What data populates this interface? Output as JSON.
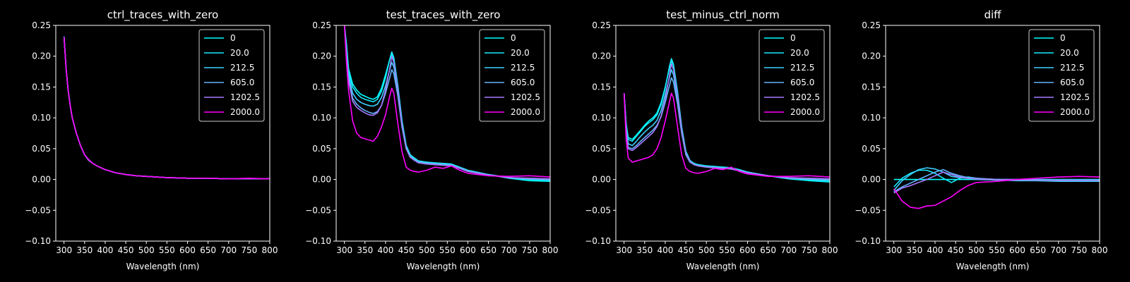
{
  "theme": {
    "background": "#000000",
    "foreground": "#ffffff"
  },
  "legend": {
    "placement": "upper right"
  },
  "series_styles": [
    {
      "name": "0",
      "color": "#00ffff"
    },
    {
      "name": "20.0",
      "color": "#14eaff"
    },
    {
      "name": "212.5",
      "color": "#3fd0ff"
    },
    {
      "name": "605.0",
      "color": "#62b4ff"
    },
    {
      "name": "1202.5",
      "color": "#a67aff"
    },
    {
      "name": "2000.0",
      "color": "#ff00ff"
    }
  ],
  "chart_data": [
    {
      "type": "line",
      "title": "ctrl_traces_with_zero",
      "xlabel": "Wavelength (nm)",
      "ylabel": "",
      "xlim": [
        280,
        800
      ],
      "ylim": [
        -0.1,
        0.25
      ],
      "xticks": [
        300,
        350,
        400,
        450,
        500,
        550,
        600,
        650,
        700,
        750,
        800
      ],
      "yticks": [
        -0.1,
        -0.05,
        0.0,
        0.05,
        0.1,
        0.15,
        0.2,
        0.25
      ],
      "xtick_labels": [
        "300",
        "350",
        "400",
        "450",
        "500",
        "550",
        "600",
        "650",
        "700",
        "750",
        "800"
      ],
      "ytick_labels": [
        "−0.10",
        "−0.05",
        "0.00",
        "0.05",
        "0.10",
        "0.15",
        "0.20",
        "0.25"
      ],
      "x": [
        300,
        305,
        310,
        315,
        320,
        330,
        340,
        350,
        360,
        370,
        380,
        400,
        425,
        450,
        475,
        500,
        550,
        600,
        650,
        700,
        750,
        800
      ],
      "series": [
        {
          "name": "0",
          "values": [
            0.232,
            0.18,
            0.145,
            0.12,
            0.1,
            0.075,
            0.055,
            0.04,
            0.032,
            0.026,
            0.022,
            0.016,
            0.011,
            0.008,
            0.006,
            0.005,
            0.003,
            0.002,
            0.002,
            0.001,
            0.001,
            0.001
          ]
        },
        {
          "name": "20.0",
          "values": [
            0.231,
            0.18,
            0.144,
            0.12,
            0.1,
            0.075,
            0.055,
            0.04,
            0.031,
            0.026,
            0.022,
            0.016,
            0.011,
            0.008,
            0.006,
            0.005,
            0.003,
            0.002,
            0.002,
            0.001,
            0.001,
            0.001
          ]
        },
        {
          "name": "212.5",
          "values": [
            0.231,
            0.18,
            0.145,
            0.12,
            0.1,
            0.075,
            0.055,
            0.04,
            0.032,
            0.026,
            0.022,
            0.016,
            0.011,
            0.008,
            0.006,
            0.005,
            0.003,
            0.002,
            0.002,
            0.001,
            0.001,
            0.001
          ]
        },
        {
          "name": "605.0",
          "values": [
            0.231,
            0.18,
            0.144,
            0.12,
            0.1,
            0.075,
            0.055,
            0.04,
            0.031,
            0.026,
            0.022,
            0.016,
            0.011,
            0.008,
            0.006,
            0.005,
            0.003,
            0.002,
            0.002,
            0.001,
            0.001,
            0.001
          ]
        },
        {
          "name": "1202.5",
          "values": [
            0.231,
            0.18,
            0.145,
            0.12,
            0.1,
            0.075,
            0.055,
            0.04,
            0.032,
            0.026,
            0.022,
            0.016,
            0.011,
            0.008,
            0.006,
            0.005,
            0.003,
            0.002,
            0.002,
            0.001,
            0.001,
            0.001
          ]
        },
        {
          "name": "2000.0",
          "values": [
            0.231,
            0.18,
            0.145,
            0.12,
            0.1,
            0.075,
            0.055,
            0.04,
            0.032,
            0.026,
            0.022,
            0.016,
            0.011,
            0.008,
            0.006,
            0.005,
            0.003,
            0.002,
            0.002,
            0.001,
            0.002,
            0.001
          ]
        }
      ]
    },
    {
      "type": "line",
      "title": "test_traces_with_zero",
      "xlabel": "Wavelength (nm)",
      "ylabel": "",
      "xlim": [
        280,
        800
      ],
      "ylim": [
        -0.1,
        0.25
      ],
      "xticks": [
        300,
        350,
        400,
        450,
        500,
        550,
        600,
        650,
        700,
        750,
        800
      ],
      "yticks": [
        -0.1,
        -0.05,
        0.0,
        0.05,
        0.1,
        0.15,
        0.2,
        0.25
      ],
      "xtick_labels": [
        "300",
        "350",
        "400",
        "450",
        "500",
        "550",
        "600",
        "650",
        "700",
        "750",
        "800"
      ],
      "ytick_labels": [
        "−0.10",
        "−0.05",
        "0.00",
        "0.05",
        "0.10",
        "0.15",
        "0.20",
        "0.25"
      ],
      "x": [
        300,
        305,
        310,
        320,
        330,
        340,
        350,
        360,
        370,
        380,
        390,
        400,
        410,
        415,
        420,
        430,
        440,
        450,
        460,
        470,
        480,
        500,
        520,
        540,
        560,
        580,
        600,
        650,
        700,
        750,
        800
      ],
      "series": [
        {
          "name": "0",
          "values": [
            0.25,
            0.22,
            0.18,
            0.155,
            0.145,
            0.138,
            0.135,
            0.132,
            0.13,
            0.134,
            0.148,
            0.17,
            0.195,
            0.203,
            0.195,
            0.15,
            0.095,
            0.055,
            0.04,
            0.035,
            0.03,
            0.028,
            0.027,
            0.026,
            0.025,
            0.02,
            0.015,
            0.008,
            0.002,
            -0.002,
            -0.003
          ]
        },
        {
          "name": "20.0",
          "values": [
            0.25,
            0.215,
            0.175,
            0.15,
            0.14,
            0.133,
            0.13,
            0.128,
            0.126,
            0.13,
            0.143,
            0.165,
            0.195,
            0.207,
            0.198,
            0.152,
            0.095,
            0.055,
            0.04,
            0.034,
            0.03,
            0.028,
            0.027,
            0.026,
            0.025,
            0.02,
            0.015,
            0.008,
            0.003,
            0.0,
            -0.002
          ]
        },
        {
          "name": "212.5",
          "values": [
            0.25,
            0.21,
            0.17,
            0.14,
            0.13,
            0.125,
            0.122,
            0.12,
            0.119,
            0.122,
            0.133,
            0.152,
            0.178,
            0.19,
            0.183,
            0.142,
            0.09,
            0.052,
            0.038,
            0.033,
            0.029,
            0.027,
            0.026,
            0.025,
            0.024,
            0.019,
            0.014,
            0.008,
            0.003,
            0.001,
            0.0
          ]
        },
        {
          "name": "605.0",
          "values": [
            0.25,
            0.205,
            0.165,
            0.132,
            0.122,
            0.116,
            0.112,
            0.109,
            0.107,
            0.11,
            0.12,
            0.14,
            0.165,
            0.178,
            0.172,
            0.135,
            0.085,
            0.05,
            0.036,
            0.032,
            0.028,
            0.026,
            0.025,
            0.024,
            0.023,
            0.018,
            0.013,
            0.007,
            0.003,
            0.001,
            0.0
          ]
        },
        {
          "name": "1202.5",
          "values": [
            0.25,
            0.2,
            0.16,
            0.127,
            0.117,
            0.112,
            0.108,
            0.105,
            0.104,
            0.108,
            0.12,
            0.145,
            0.18,
            0.2,
            0.19,
            0.145,
            0.088,
            0.05,
            0.036,
            0.031,
            0.027,
            0.025,
            0.024,
            0.023,
            0.022,
            0.018,
            0.013,
            0.007,
            0.003,
            0.002,
            0.001
          ]
        },
        {
          "name": "2000.0",
          "values": [
            0.25,
            0.19,
            0.145,
            0.095,
            0.075,
            0.068,
            0.066,
            0.064,
            0.062,
            0.07,
            0.085,
            0.105,
            0.135,
            0.148,
            0.14,
            0.09,
            0.045,
            0.02,
            0.015,
            0.013,
            0.012,
            0.015,
            0.02,
            0.018,
            0.022,
            0.015,
            0.01,
            0.006,
            0.005,
            0.006,
            0.004
          ]
        }
      ]
    },
    {
      "type": "line",
      "title": "test_minus_ctrl_norm",
      "xlabel": "Wavelength (nm)",
      "ylabel": "",
      "xlim": [
        280,
        800
      ],
      "ylim": [
        -0.1,
        0.25
      ],
      "xticks": [
        300,
        350,
        400,
        450,
        500,
        550,
        600,
        650,
        700,
        750,
        800
      ],
      "yticks": [
        -0.1,
        -0.05,
        0.0,
        0.05,
        0.1,
        0.15,
        0.2,
        0.25
      ],
      "xtick_labels": [
        "300",
        "350",
        "400",
        "450",
        "500",
        "550",
        "600",
        "650",
        "700",
        "750",
        "800"
      ],
      "ytick_labels": [
        "−0.10",
        "−0.05",
        "0.00",
        "0.05",
        "0.10",
        "0.15",
        "0.20",
        "0.25"
      ],
      "x": [
        300,
        305,
        310,
        320,
        330,
        340,
        350,
        360,
        370,
        380,
        390,
        400,
        410,
        415,
        420,
        430,
        440,
        450,
        460,
        470,
        480,
        500,
        520,
        540,
        560,
        580,
        600,
        650,
        700,
        750,
        800
      ],
      "series": [
        {
          "name": "0",
          "values": [
            0.14,
            0.09,
            0.068,
            0.065,
            0.072,
            0.08,
            0.088,
            0.095,
            0.1,
            0.108,
            0.125,
            0.15,
            0.18,
            0.193,
            0.185,
            0.14,
            0.085,
            0.045,
            0.03,
            0.026,
            0.024,
            0.022,
            0.021,
            0.02,
            0.019,
            0.016,
            0.012,
            0.006,
            0.001,
            -0.002,
            -0.004
          ]
        },
        {
          "name": "20.0",
          "values": [
            0.14,
            0.09,
            0.065,
            0.062,
            0.07,
            0.078,
            0.086,
            0.092,
            0.097,
            0.105,
            0.122,
            0.148,
            0.183,
            0.196,
            0.187,
            0.142,
            0.085,
            0.046,
            0.031,
            0.026,
            0.024,
            0.022,
            0.021,
            0.02,
            0.019,
            0.016,
            0.012,
            0.006,
            0.002,
            -0.001,
            -0.003
          ]
        },
        {
          "name": "212.5",
          "values": [
            0.14,
            0.085,
            0.058,
            0.055,
            0.062,
            0.07,
            0.077,
            0.083,
            0.088,
            0.096,
            0.112,
            0.138,
            0.165,
            0.178,
            0.17,
            0.13,
            0.08,
            0.043,
            0.03,
            0.025,
            0.023,
            0.021,
            0.02,
            0.019,
            0.018,
            0.015,
            0.011,
            0.006,
            0.002,
            0.0,
            -0.001
          ]
        },
        {
          "name": "605.0",
          "values": [
            0.14,
            0.08,
            0.052,
            0.05,
            0.055,
            0.062,
            0.068,
            0.074,
            0.08,
            0.088,
            0.102,
            0.125,
            0.152,
            0.165,
            0.158,
            0.122,
            0.075,
            0.04,
            0.028,
            0.024,
            0.022,
            0.02,
            0.019,
            0.018,
            0.017,
            0.014,
            0.011,
            0.006,
            0.002,
            0.001,
            0.0
          ]
        },
        {
          "name": "1202.5",
          "values": [
            0.14,
            0.078,
            0.05,
            0.047,
            0.052,
            0.058,
            0.064,
            0.07,
            0.076,
            0.086,
            0.103,
            0.13,
            0.168,
            0.188,
            0.178,
            0.135,
            0.08,
            0.042,
            0.029,
            0.024,
            0.022,
            0.02,
            0.019,
            0.018,
            0.017,
            0.014,
            0.011,
            0.006,
            0.003,
            0.002,
            0.001
          ]
        },
        {
          "name": "2000.0",
          "values": [
            0.14,
            0.065,
            0.035,
            0.028,
            0.03,
            0.032,
            0.034,
            0.036,
            0.04,
            0.05,
            0.068,
            0.095,
            0.125,
            0.14,
            0.132,
            0.085,
            0.04,
            0.018,
            0.013,
            0.011,
            0.01,
            0.013,
            0.018,
            0.016,
            0.02,
            0.013,
            0.009,
            0.005,
            0.005,
            0.006,
            0.004
          ]
        }
      ]
    },
    {
      "type": "line",
      "title": "diff",
      "xlabel": "Wavelength (nm)",
      "ylabel": "",
      "xlim": [
        280,
        800
      ],
      "ylim": [
        -0.1,
        0.25
      ],
      "xticks": [
        300,
        350,
        400,
        450,
        500,
        550,
        600,
        650,
        700,
        750,
        800
      ],
      "yticks": [
        -0.1,
        -0.05,
        0.0,
        0.05,
        0.1,
        0.15,
        0.2,
        0.25
      ],
      "xtick_labels": [
        "300",
        "350",
        "400",
        "450",
        "500",
        "550",
        "600",
        "650",
        "700",
        "750",
        "800"
      ],
      "ytick_labels": [
        "−0.10",
        "−0.05",
        "0.00",
        "0.05",
        "0.10",
        "0.15",
        "0.20",
        "0.25"
      ],
      "x": [
        300,
        310,
        320,
        340,
        360,
        380,
        400,
        420,
        440,
        460,
        480,
        500,
        550,
        600,
        650,
        700,
        750,
        800
      ],
      "series": [
        {
          "name": "0",
          "values": [
            0.0,
            0.0,
            0.0,
            0.0,
            0.0,
            0.0,
            0.0,
            0.0,
            0.0,
            0.0,
            0.0,
            0.0,
            0.0,
            0.0,
            0.0,
            0.0,
            0.0,
            0.0
          ]
        },
        {
          "name": "20.0",
          "values": [
            -0.012,
            -0.005,
            0.002,
            0.01,
            0.015,
            0.015,
            0.01,
            0.002,
            -0.005,
            0.002,
            0.004,
            0.002,
            0.0,
            -0.001,
            -0.002,
            -0.002,
            -0.003,
            -0.003
          ]
        },
        {
          "name": "212.5",
          "values": [
            -0.018,
            -0.01,
            -0.002,
            0.008,
            0.016,
            0.019,
            0.017,
            0.012,
            0.005,
            0.003,
            0.002,
            0.0,
            -0.001,
            -0.002,
            -0.002,
            -0.003,
            -0.003,
            -0.003
          ]
        },
        {
          "name": "605.0",
          "values": [
            -0.02,
            -0.016,
            -0.012,
            -0.006,
            0.0,
            0.006,
            0.012,
            0.016,
            0.01,
            0.006,
            0.003,
            0.002,
            0.0,
            -0.001,
            -0.001,
            -0.002,
            -0.002,
            -0.002
          ]
        },
        {
          "name": "1202.5",
          "values": [
            -0.022,
            -0.018,
            -0.014,
            -0.01,
            -0.005,
            0.0,
            0.006,
            0.012,
            0.008,
            0.004,
            0.002,
            0.001,
            0.0,
            0.0,
            -0.001,
            -0.001,
            -0.001,
            -0.001
          ]
        },
        {
          "name": "2000.0",
          "values": [
            -0.015,
            -0.025,
            -0.035,
            -0.045,
            -0.047,
            -0.043,
            -0.042,
            -0.035,
            -0.028,
            -0.018,
            -0.01,
            -0.005,
            -0.003,
            0.0,
            0.002,
            0.004,
            0.005,
            0.004
          ]
        }
      ]
    }
  ]
}
